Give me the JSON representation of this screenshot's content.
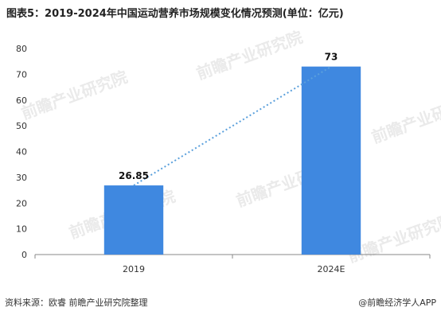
{
  "title": "图表5：2019-2024年中国运动营养市场规模变化情况预测(单位：亿元)",
  "footer": {
    "source": "资料来源：欧睿 前瞻产业研究院整理",
    "brand": "@前瞻经济学人APP"
  },
  "watermark": "前瞻产业研究院",
  "colors": {
    "bar": "#3f88e0",
    "trend": "#5ba0dc",
    "axis": "#888888"
  },
  "chart_data": {
    "type": "bar",
    "categories": [
      "2019",
      "2024E"
    ],
    "values": [
      26.85,
      73
    ],
    "data_labels": [
      "26.85",
      "73"
    ],
    "yticks": [
      "0",
      "10",
      "20",
      "30",
      "40",
      "50",
      "60",
      "70",
      "80"
    ],
    "ylim": [
      0,
      80
    ],
    "trendline": "dotted",
    "grid": false,
    "xlabel": "",
    "ylabel": ""
  }
}
